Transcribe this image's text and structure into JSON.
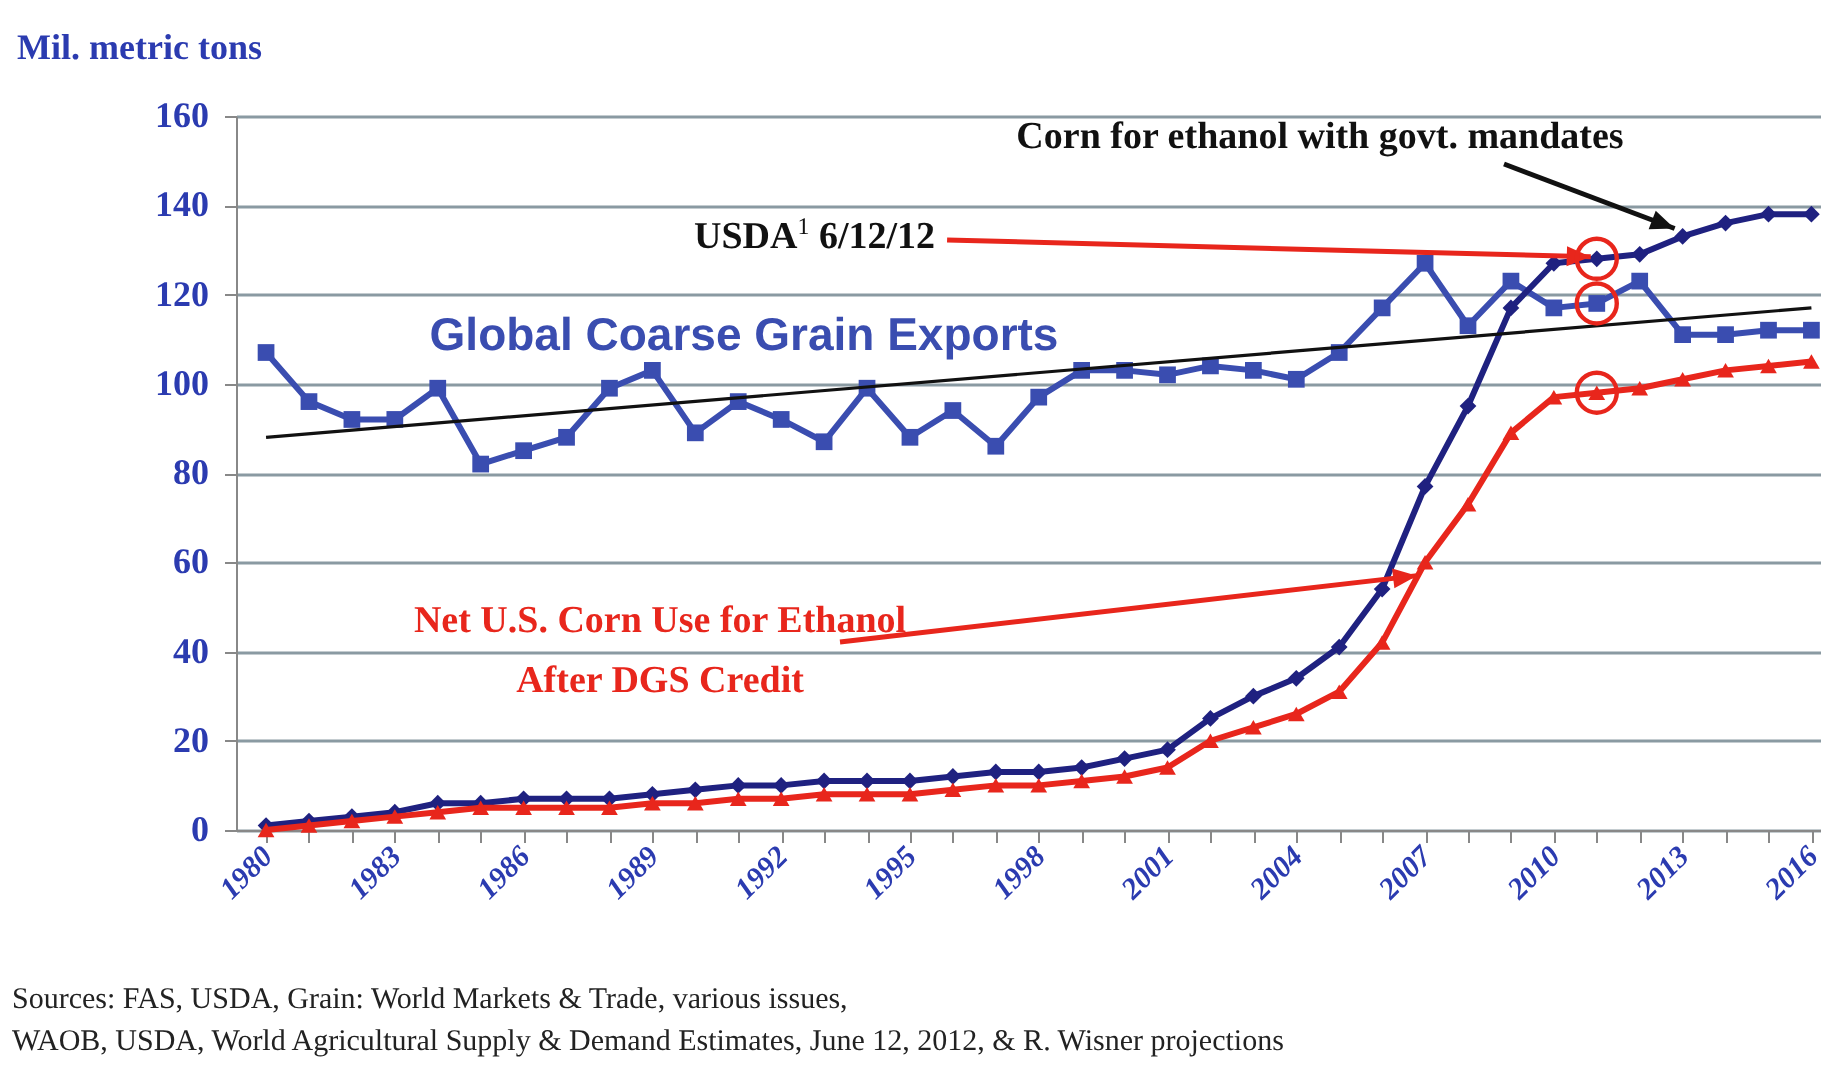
{
  "chart_data": {
    "type": "line",
    "ylabel": "Mil. metric tons",
    "x": [
      1980,
      1981,
      1982,
      1983,
      1984,
      1985,
      1986,
      1987,
      1988,
      1989,
      1990,
      1991,
      1992,
      1993,
      1994,
      1995,
      1996,
      1997,
      1998,
      1999,
      2000,
      2001,
      2002,
      2003,
      2004,
      2005,
      2006,
      2007,
      2008,
      2009,
      2010,
      2011,
      2012,
      2013,
      2014,
      2015,
      2016
    ],
    "series": [
      {
        "name": "Global Coarse Grain Exports",
        "color": "#3a4db0",
        "marker": "square",
        "values": [
          107,
          96,
          92,
          92,
          99,
          82,
          85,
          88,
          99,
          103,
          89,
          96,
          92,
          87,
          99,
          88,
          94,
          86,
          97,
          103,
          103,
          102,
          104,
          103,
          101,
          107,
          117,
          127,
          113,
          123,
          117,
          118,
          123,
          111,
          111,
          112,
          112
        ]
      },
      {
        "name": "Corn for ethanol with govt. mandates",
        "color": "#1f2180",
        "marker": "diamond",
        "values": [
          1,
          2,
          3,
          4,
          6,
          6,
          7,
          7,
          7,
          8,
          9,
          10,
          10,
          11,
          11,
          11,
          12,
          13,
          13,
          14,
          16,
          18,
          25,
          30,
          34,
          41,
          54,
          77,
          95,
          117,
          127,
          128,
          129,
          133,
          136,
          138,
          138
        ]
      },
      {
        "name": "Net U.S. Corn Use for Ethanol After DGS Credit",
        "color": "#e8261c",
        "marker": "triangle",
        "values": [
          0,
          1,
          2,
          3,
          4,
          5,
          5,
          5,
          5,
          6,
          6,
          7,
          7,
          8,
          8,
          8,
          9,
          10,
          10,
          11,
          12,
          14,
          20,
          23,
          26,
          31,
          42,
          60,
          73,
          89,
          97,
          98,
          99,
          101,
          103,
          104,
          105
        ]
      },
      {
        "type": "line",
        "color": "#111111",
        "marker": "none",
        "x": [
          1980,
          2016
        ],
        "values": [
          88,
          117
        ]
      }
    ],
    "xlim": [
      1979.3,
      2016.2
    ],
    "xticks": [
      1980,
      {
        "value": 1981,
        "label": null
      },
      {
        "value": 1982,
        "label": null
      },
      1983,
      {
        "value": 1984,
        "label": null
      },
      {
        "value": 1985,
        "label": null
      },
      1986,
      {
        "value": 1987,
        "label": null
      },
      {
        "value": 1988,
        "label": null
      },
      1989,
      {
        "value": 1990,
        "label": null
      },
      {
        "value": 1991,
        "label": null
      },
      1992,
      {
        "value": 1993,
        "label": null
      },
      {
        "value": 1994,
        "label": null
      },
      1995,
      {
        "value": 1996,
        "label": null
      },
      {
        "value": 1997,
        "label": null
      },
      1998,
      {
        "value": 1999,
        "label": null
      },
      {
        "value": 2000,
        "label": null
      },
      2001,
      {
        "value": 2002,
        "label": null
      },
      {
        "value": 2003,
        "label": null
      },
      2004,
      {
        "value": 2005,
        "label": null
      },
      {
        "value": 2006,
        "label": null
      },
      2007,
      {
        "value": 2008,
        "label": null
      },
      {
        "value": 2009,
        "label": null
      },
      2010,
      {
        "value": 2011,
        "label": null
      },
      {
        "value": 2012,
        "label": null
      },
      2013,
      {
        "value": 2014,
        "label": null
      },
      {
        "value": 2015,
        "label": null
      },
      2016
    ],
    "ylim": [
      0,
      160
    ],
    "yticks": [
      0,
      20,
      40,
      60,
      80,
      100,
      120,
      140,
      160
    ],
    "grid": "y",
    "annotations": [
      {
        "text": "USDA$^{1}$ 6/12/12",
        "x": 2011,
        "y": 128
      },
      "Sources: FAS, USDA, Grain: World Markets & Trade,  various issues,",
      "WAOB, USDA,  World Agricultural Supply & Demand Estimates, June 12, 2012, & R. Wisner projections"
    ]
  }
}
